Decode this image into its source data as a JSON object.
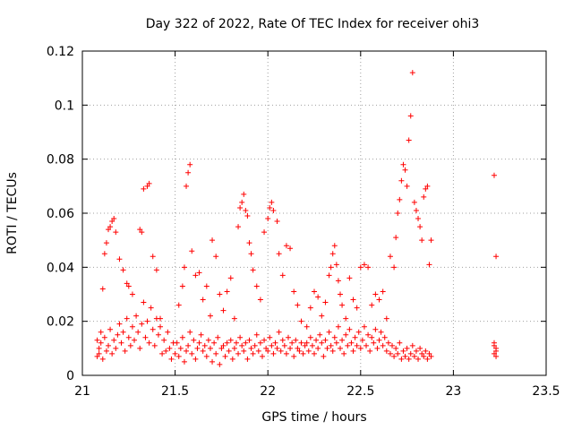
{
  "chart_data": {
    "type": "scatter",
    "title": "Day 322 of 2022, Rate Of TEC Index for receiver ohi3",
    "xlabel": "GPS time / hours",
    "ylabel": "ROTI / TECUs",
    "xlim": [
      21,
      23.5
    ],
    "ylim": [
      0,
      0.12
    ],
    "x_ticks": [
      "21",
      "21.5",
      "22",
      "22.5",
      "23",
      "23.5"
    ],
    "y_ticks": [
      "0",
      "0.02",
      "0.04",
      "0.06",
      "0.08",
      "0.1",
      "0.12"
    ],
    "grid": true,
    "marker": "+",
    "color": "#ff0000",
    "series": [
      {
        "points": [
          [
            21.08,
            0.013
          ],
          [
            21.09,
            0.008
          ],
          [
            21.1,
            0.016
          ],
          [
            21.11,
            0.032
          ],
          [
            21.12,
            0.045
          ],
          [
            21.13,
            0.049
          ],
          [
            21.14,
            0.054
          ],
          [
            21.15,
            0.055
          ],
          [
            21.16,
            0.057
          ],
          [
            21.17,
            0.058
          ],
          [
            21.18,
            0.053
          ],
          [
            21.2,
            0.043
          ],
          [
            21.22,
            0.039
          ],
          [
            21.24,
            0.034
          ],
          [
            21.25,
            0.033
          ],
          [
            21.27,
            0.03
          ],
          [
            21.31,
            0.054
          ],
          [
            21.32,
            0.053
          ],
          [
            21.33,
            0.069
          ],
          [
            21.35,
            0.07
          ],
          [
            21.36,
            0.071
          ],
          [
            21.38,
            0.044
          ],
          [
            21.4,
            0.039
          ],
          [
            21.42,
            0.021
          ],
          [
            21.08,
            0.007
          ],
          [
            21.09,
            0.01
          ],
          [
            21.1,
            0.012
          ],
          [
            21.11,
            0.006
          ],
          [
            21.12,
            0.014
          ],
          [
            21.13,
            0.009
          ],
          [
            21.14,
            0.011
          ],
          [
            21.15,
            0.017
          ],
          [
            21.16,
            0.008
          ],
          [
            21.17,
            0.013
          ],
          [
            21.18,
            0.01
          ],
          [
            21.19,
            0.015
          ],
          [
            21.2,
            0.019
          ],
          [
            21.21,
            0.012
          ],
          [
            21.22,
            0.016
          ],
          [
            21.23,
            0.009
          ],
          [
            21.24,
            0.021
          ],
          [
            21.25,
            0.014
          ],
          [
            21.26,
            0.011
          ],
          [
            21.27,
            0.018
          ],
          [
            21.28,
            0.013
          ],
          [
            21.29,
            0.022
          ],
          [
            21.3,
            0.016
          ],
          [
            21.31,
            0.01
          ],
          [
            21.32,
            0.019
          ],
          [
            21.33,
            0.027
          ],
          [
            21.34,
            0.014
          ],
          [
            21.35,
            0.02
          ],
          [
            21.36,
            0.012
          ],
          [
            21.37,
            0.025
          ],
          [
            21.38,
            0.017
          ],
          [
            21.39,
            0.011
          ],
          [
            21.4,
            0.021
          ],
          [
            21.41,
            0.015
          ],
          [
            21.42,
            0.018
          ],
          [
            21.43,
            0.008
          ],
          [
            21.44,
            0.013
          ],
          [
            21.45,
            0.009
          ],
          [
            21.46,
            0.016
          ],
          [
            21.47,
            0.01
          ],
          [
            21.48,
            0.006
          ],
          [
            21.49,
            0.012
          ],
          [
            21.5,
            0.008
          ],
          [
            21.52,
            0.026
          ],
          [
            21.54,
            0.033
          ],
          [
            21.55,
            0.04
          ],
          [
            21.56,
            0.07
          ],
          [
            21.57,
            0.075
          ],
          [
            21.58,
            0.078
          ],
          [
            21.59,
            0.046
          ],
          [
            21.61,
            0.037
          ],
          [
            21.63,
            0.038
          ],
          [
            21.65,
            0.028
          ],
          [
            21.67,
            0.033
          ],
          [
            21.69,
            0.022
          ],
          [
            21.7,
            0.05
          ],
          [
            21.72,
            0.044
          ],
          [
            21.74,
            0.03
          ],
          [
            21.76,
            0.024
          ],
          [
            21.78,
            0.031
          ],
          [
            21.8,
            0.036
          ],
          [
            21.82,
            0.021
          ],
          [
            21.84,
            0.055
          ],
          [
            21.85,
            0.062
          ],
          [
            21.86,
            0.064
          ],
          [
            21.87,
            0.067
          ],
          [
            21.88,
            0.061
          ],
          [
            21.89,
            0.059
          ],
          [
            21.9,
            0.049
          ],
          [
            21.91,
            0.045
          ],
          [
            21.92,
            0.039
          ],
          [
            21.94,
            0.033
          ],
          [
            21.96,
            0.028
          ],
          [
            21.98,
            0.053
          ],
          [
            22.0,
            0.058
          ],
          [
            22.01,
            0.062
          ],
          [
            22.02,
            0.064
          ],
          [
            22.03,
            0.061
          ],
          [
            22.05,
            0.057
          ],
          [
            22.06,
            0.045
          ],
          [
            22.08,
            0.037
          ],
          [
            22.1,
            0.048
          ],
          [
            22.12,
            0.047
          ],
          [
            22.14,
            0.031
          ],
          [
            22.16,
            0.026
          ],
          [
            22.18,
            0.02
          ],
          [
            21.51,
            0.012
          ],
          [
            21.52,
            0.007
          ],
          [
            21.53,
            0.01
          ],
          [
            21.54,
            0.014
          ],
          [
            21.55,
            0.005
          ],
          [
            21.56,
            0.009
          ],
          [
            21.57,
            0.011
          ],
          [
            21.58,
            0.016
          ],
          [
            21.59,
            0.008
          ],
          [
            21.6,
            0.013
          ],
          [
            21.61,
            0.006
          ],
          [
            21.62,
            0.01
          ],
          [
            21.63,
            0.012
          ],
          [
            21.64,
            0.015
          ],
          [
            21.65,
            0.009
          ],
          [
            21.66,
            0.011
          ],
          [
            21.67,
            0.007
          ],
          [
            21.68,
            0.013
          ],
          [
            21.69,
            0.01
          ],
          [
            21.7,
            0.005
          ],
          [
            21.71,
            0.012
          ],
          [
            21.72,
            0.008
          ],
          [
            21.73,
            0.014
          ],
          [
            21.74,
            0.004
          ],
          [
            21.75,
            0.01
          ],
          [
            21.76,
            0.011
          ],
          [
            21.77,
            0.007
          ],
          [
            21.78,
            0.012
          ],
          [
            21.79,
            0.009
          ],
          [
            21.8,
            0.013
          ],
          [
            21.81,
            0.006
          ],
          [
            21.82,
            0.01
          ],
          [
            21.83,
            0.012
          ],
          [
            21.84,
            0.008
          ],
          [
            21.85,
            0.014
          ],
          [
            21.86,
            0.011
          ],
          [
            21.87,
            0.009
          ],
          [
            21.88,
            0.012
          ],
          [
            21.89,
            0.006
          ],
          [
            21.9,
            0.013
          ],
          [
            21.91,
            0.01
          ],
          [
            21.92,
            0.008
          ],
          [
            21.93,
            0.011
          ],
          [
            21.94,
            0.015
          ],
          [
            21.95,
            0.009
          ],
          [
            21.96,
            0.012
          ],
          [
            21.97,
            0.007
          ],
          [
            21.98,
            0.013
          ],
          [
            21.99,
            0.01
          ],
          [
            22.0,
            0.009
          ],
          [
            22.01,
            0.014
          ],
          [
            22.02,
            0.011
          ],
          [
            22.03,
            0.008
          ],
          [
            22.04,
            0.012
          ],
          [
            22.05,
            0.01
          ],
          [
            22.06,
            0.016
          ],
          [
            22.07,
            0.009
          ],
          [
            22.08,
            0.013
          ],
          [
            22.09,
            0.011
          ],
          [
            22.1,
            0.008
          ],
          [
            22.11,
            0.014
          ],
          [
            22.12,
            0.01
          ],
          [
            22.13,
            0.012
          ],
          [
            22.14,
            0.007
          ],
          [
            22.15,
            0.013
          ],
          [
            22.16,
            0.01
          ],
          [
            22.17,
            0.009
          ],
          [
            22.18,
            0.012
          ],
          [
            22.19,
            0.008
          ],
          [
            22.2,
            0.011
          ],
          [
            22.21,
            0.018
          ],
          [
            22.23,
            0.025
          ],
          [
            22.25,
            0.031
          ],
          [
            22.27,
            0.029
          ],
          [
            22.29,
            0.022
          ],
          [
            22.31,
            0.027
          ],
          [
            22.33,
            0.037
          ],
          [
            22.34,
            0.04
          ],
          [
            22.35,
            0.045
          ],
          [
            22.36,
            0.048
          ],
          [
            22.37,
            0.041
          ],
          [
            22.38,
            0.035
          ],
          [
            22.39,
            0.03
          ],
          [
            22.4,
            0.026
          ],
          [
            22.42,
            0.021
          ],
          [
            22.44,
            0.036
          ],
          [
            22.46,
            0.028
          ],
          [
            22.48,
            0.025
          ],
          [
            22.5,
            0.04
          ],
          [
            22.52,
            0.041
          ],
          [
            22.54,
            0.04
          ],
          [
            22.56,
            0.026
          ],
          [
            22.58,
            0.03
          ],
          [
            22.6,
            0.028
          ],
          [
            22.62,
            0.031
          ],
          [
            22.64,
            0.021
          ],
          [
            22.66,
            0.044
          ],
          [
            22.68,
            0.04
          ],
          [
            22.69,
            0.051
          ],
          [
            22.7,
            0.06
          ],
          [
            22.71,
            0.065
          ],
          [
            22.72,
            0.072
          ],
          [
            22.73,
            0.078
          ],
          [
            22.74,
            0.076
          ],
          [
            22.75,
            0.07
          ],
          [
            22.76,
            0.087
          ],
          [
            22.77,
            0.096
          ],
          [
            22.78,
            0.112
          ],
          [
            22.79,
            0.064
          ],
          [
            22.8,
            0.061
          ],
          [
            22.81,
            0.058
          ],
          [
            22.82,
            0.055
          ],
          [
            22.83,
            0.05
          ],
          [
            22.84,
            0.066
          ],
          [
            22.85,
            0.069
          ],
          [
            22.86,
            0.07
          ],
          [
            22.87,
            0.041
          ],
          [
            22.88,
            0.05
          ],
          [
            22.21,
            0.012
          ],
          [
            22.22,
            0.009
          ],
          [
            22.23,
            0.014
          ],
          [
            22.24,
            0.011
          ],
          [
            22.25,
            0.008
          ],
          [
            22.26,
            0.013
          ],
          [
            22.27,
            0.01
          ],
          [
            22.28,
            0.015
          ],
          [
            22.29,
            0.012
          ],
          [
            22.3,
            0.007
          ],
          [
            22.31,
            0.013
          ],
          [
            22.32,
            0.01
          ],
          [
            22.33,
            0.016
          ],
          [
            22.34,
            0.011
          ],
          [
            22.35,
            0.009
          ],
          [
            22.36,
            0.014
          ],
          [
            22.37,
            0.012
          ],
          [
            22.38,
            0.018
          ],
          [
            22.39,
            0.01
          ],
          [
            22.4,
            0.013
          ],
          [
            22.41,
            0.008
          ],
          [
            22.42,
            0.015
          ],
          [
            22.43,
            0.011
          ],
          [
            22.44,
            0.017
          ],
          [
            22.45,
            0.012
          ],
          [
            22.46,
            0.009
          ],
          [
            22.47,
            0.014
          ],
          [
            22.48,
            0.011
          ],
          [
            22.49,
            0.016
          ],
          [
            22.5,
            0.01
          ],
          [
            22.51,
            0.013
          ],
          [
            22.52,
            0.018
          ],
          [
            22.53,
            0.011
          ],
          [
            22.54,
            0.015
          ],
          [
            22.55,
            0.009
          ],
          [
            22.56,
            0.014
          ],
          [
            22.57,
            0.012
          ],
          [
            22.58,
            0.017
          ],
          [
            22.59,
            0.01
          ],
          [
            22.6,
            0.013
          ],
          [
            22.61,
            0.016
          ],
          [
            22.62,
            0.011
          ],
          [
            22.63,
            0.014
          ],
          [
            22.64,
            0.009
          ],
          [
            22.65,
            0.012
          ],
          [
            22.66,
            0.008
          ],
          [
            22.67,
            0.011
          ],
          [
            22.68,
            0.007
          ],
          [
            22.69,
            0.01
          ],
          [
            22.7,
            0.008
          ],
          [
            22.71,
            0.012
          ],
          [
            22.72,
            0.006
          ],
          [
            22.73,
            0.009
          ],
          [
            22.74,
            0.007
          ],
          [
            22.75,
            0.01
          ],
          [
            22.76,
            0.006
          ],
          [
            22.77,
            0.008
          ],
          [
            22.78,
            0.011
          ],
          [
            22.79,
            0.007
          ],
          [
            22.8,
            0.009
          ],
          [
            22.81,
            0.006
          ],
          [
            22.82,
            0.01
          ],
          [
            22.83,
            0.008
          ],
          [
            22.84,
            0.007
          ],
          [
            22.85,
            0.009
          ],
          [
            22.86,
            0.006
          ],
          [
            22.87,
            0.008
          ],
          [
            22.88,
            0.007
          ],
          [
            23.22,
            0.074
          ],
          [
            23.23,
            0.044
          ],
          [
            23.22,
            0.011
          ],
          [
            23.23,
            0.009
          ],
          [
            23.22,
            0.008
          ],
          [
            23.23,
            0.01
          ],
          [
            23.22,
            0.012
          ],
          [
            23.23,
            0.007
          ]
        ]
      }
    ]
  }
}
